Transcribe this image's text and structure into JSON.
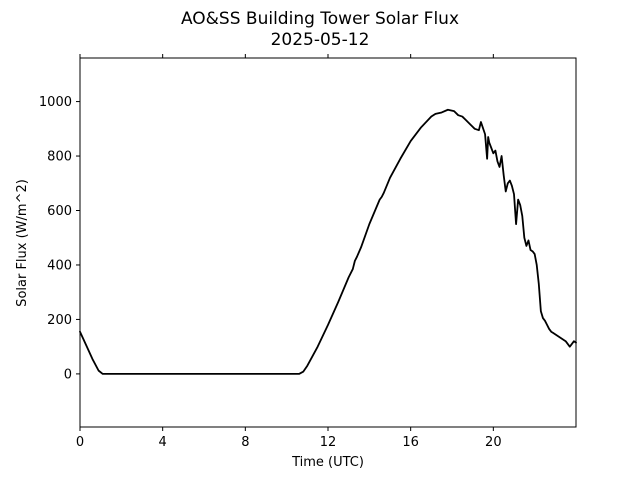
{
  "chart_data": {
    "type": "line",
    "title": "AO&SS Building Tower Solar Flux",
    "subtitle": "2025-05-12",
    "xlabel": "Time (UTC)",
    "ylabel": "Solar Flux (W/m^2)",
    "xlim": [
      0,
      24
    ],
    "ylim": [
      -195,
      1160
    ],
    "xticks": [
      0,
      4,
      8,
      12,
      16,
      20
    ],
    "xtick_labels": [
      "0",
      "4",
      "8",
      "12",
      "16",
      "20"
    ],
    "yticks": [
      0,
      200,
      400,
      600,
      800,
      1000
    ],
    "ytick_labels": [
      "0",
      "200",
      "400",
      "600",
      "800",
      "1000"
    ],
    "grid": false,
    "series_color": "#000000",
    "series": [
      {
        "x": [
          0,
          0.3,
          0.6,
          0.9,
          1.1,
          1.5,
          4,
          8,
          10.6,
          10.8,
          11.0,
          11.5,
          12,
          12.5,
          13,
          13.2,
          13.3,
          13.4,
          13.6,
          14,
          14.5,
          14.6,
          14.7,
          15,
          15.5,
          16,
          16.5,
          17,
          17.2,
          17.5,
          17.8,
          18.1,
          18.3,
          18.5,
          18.7,
          18.9,
          19.1,
          19.3,
          19.4,
          19.6,
          19.7,
          19.75,
          19.8,
          19.9,
          20.0,
          20.1,
          20.2,
          20.3,
          20.4,
          20.5,
          20.6,
          20.7,
          20.8,
          20.9,
          21.0,
          21.1,
          21.2,
          21.3,
          21.4,
          21.5,
          21.6,
          21.7,
          21.8,
          21.9,
          22.0,
          22.1,
          22.2,
          22.3,
          22.4,
          22.5,
          22.6,
          22.7,
          22.8,
          22.9,
          23.0,
          23.1,
          23.2,
          23.3,
          23.5,
          23.7,
          23.8,
          23.9,
          24.0
        ],
        "y": [
          155,
          105,
          55,
          12,
          0,
          0,
          0,
          0,
          0,
          8,
          30,
          100,
          180,
          265,
          355,
          385,
          415,
          430,
          465,
          550,
          640,
          650,
          665,
          720,
          790,
          855,
          905,
          945,
          955,
          960,
          970,
          965,
          950,
          945,
          930,
          915,
          900,
          895,
          925,
          880,
          790,
          870,
          850,
          830,
          810,
          820,
          780,
          760,
          800,
          730,
          670,
          700,
          710,
          690,
          660,
          550,
          640,
          620,
          580,
          500,
          470,
          490,
          455,
          450,
          440,
          400,
          330,
          230,
          205,
          195,
          180,
          165,
          155,
          150,
          145,
          140,
          135,
          130,
          120,
          100,
          110,
          120,
          115
        ]
      }
    ]
  }
}
